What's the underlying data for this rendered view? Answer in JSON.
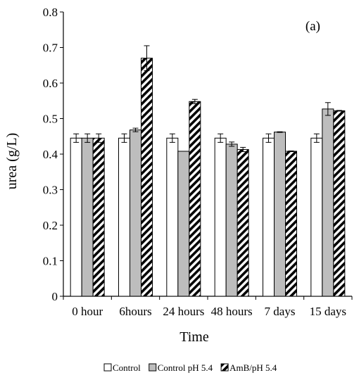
{
  "chart_data": {
    "type": "bar",
    "panel_label": "(a)",
    "xlabel": "Time",
    "ylabel": "urea (g/L)",
    "ylim": [
      0,
      0.8
    ],
    "yticks": [
      "0",
      "0.1",
      "0.2",
      "0.3",
      "0.4",
      "0.5",
      "0.6",
      "0.7",
      "0.8"
    ],
    "categories": [
      "0 hour",
      "6hours",
      "24 hours",
      "48 hours",
      "7 days",
      "15 days"
    ],
    "series": [
      {
        "name": "Control",
        "values": [
          0.445,
          0.445,
          0.445,
          0.445,
          0.445,
          0.445
        ],
        "errors": [
          0.012,
          0.012,
          0.012,
          0.012,
          0.012,
          0.012
        ],
        "fill": "#ffffff",
        "pattern": "none"
      },
      {
        "name": "Control pH 5.4",
        "values": [
          0.445,
          0.468,
          0.408,
          0.428,
          0.462,
          0.527
        ],
        "errors": [
          0.012,
          0.005,
          0,
          0.006,
          0.001,
          0.018
        ],
        "fill": "#bdbdbd",
        "pattern": "none"
      },
      {
        "name": "AmB/pH 5.4",
        "values": [
          0.445,
          0.67,
          0.548,
          0.413,
          0.408,
          0.522
        ],
        "errors": [
          0.012,
          0.035,
          0.006,
          0.006,
          0.001,
          0.001
        ],
        "fill": "#ffffff",
        "pattern": "diagonal-stripes"
      }
    ],
    "legend_position": "bottom",
    "grid": false
  }
}
